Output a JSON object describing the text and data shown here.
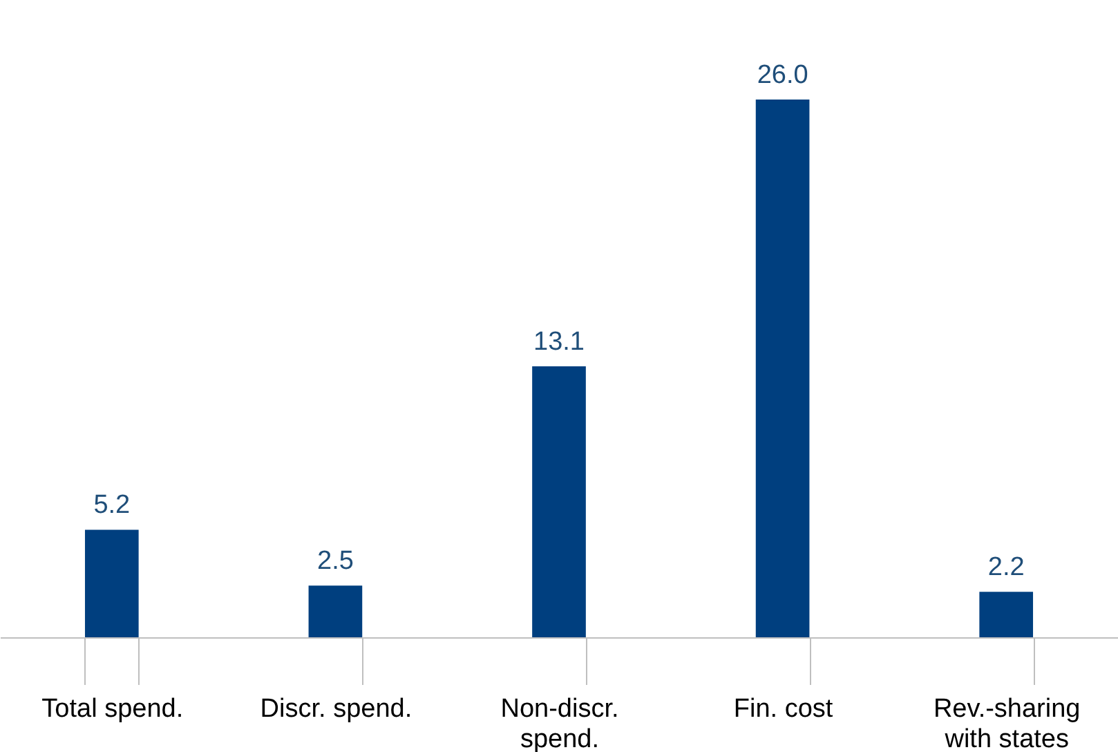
{
  "chart_data": {
    "type": "bar",
    "categories": [
      "Total spend.",
      "Discr. spend.",
      "Non-discr. spend.",
      "Fin. cost",
      "Rev.-sharing with states"
    ],
    "values": [
      5.2,
      2.5,
      13.1,
      26.0,
      2.2
    ],
    "value_labels": [
      "5.2",
      "2.5",
      "13.1",
      "26.0",
      "2.2"
    ],
    "color": "#003f7f"
  }
}
